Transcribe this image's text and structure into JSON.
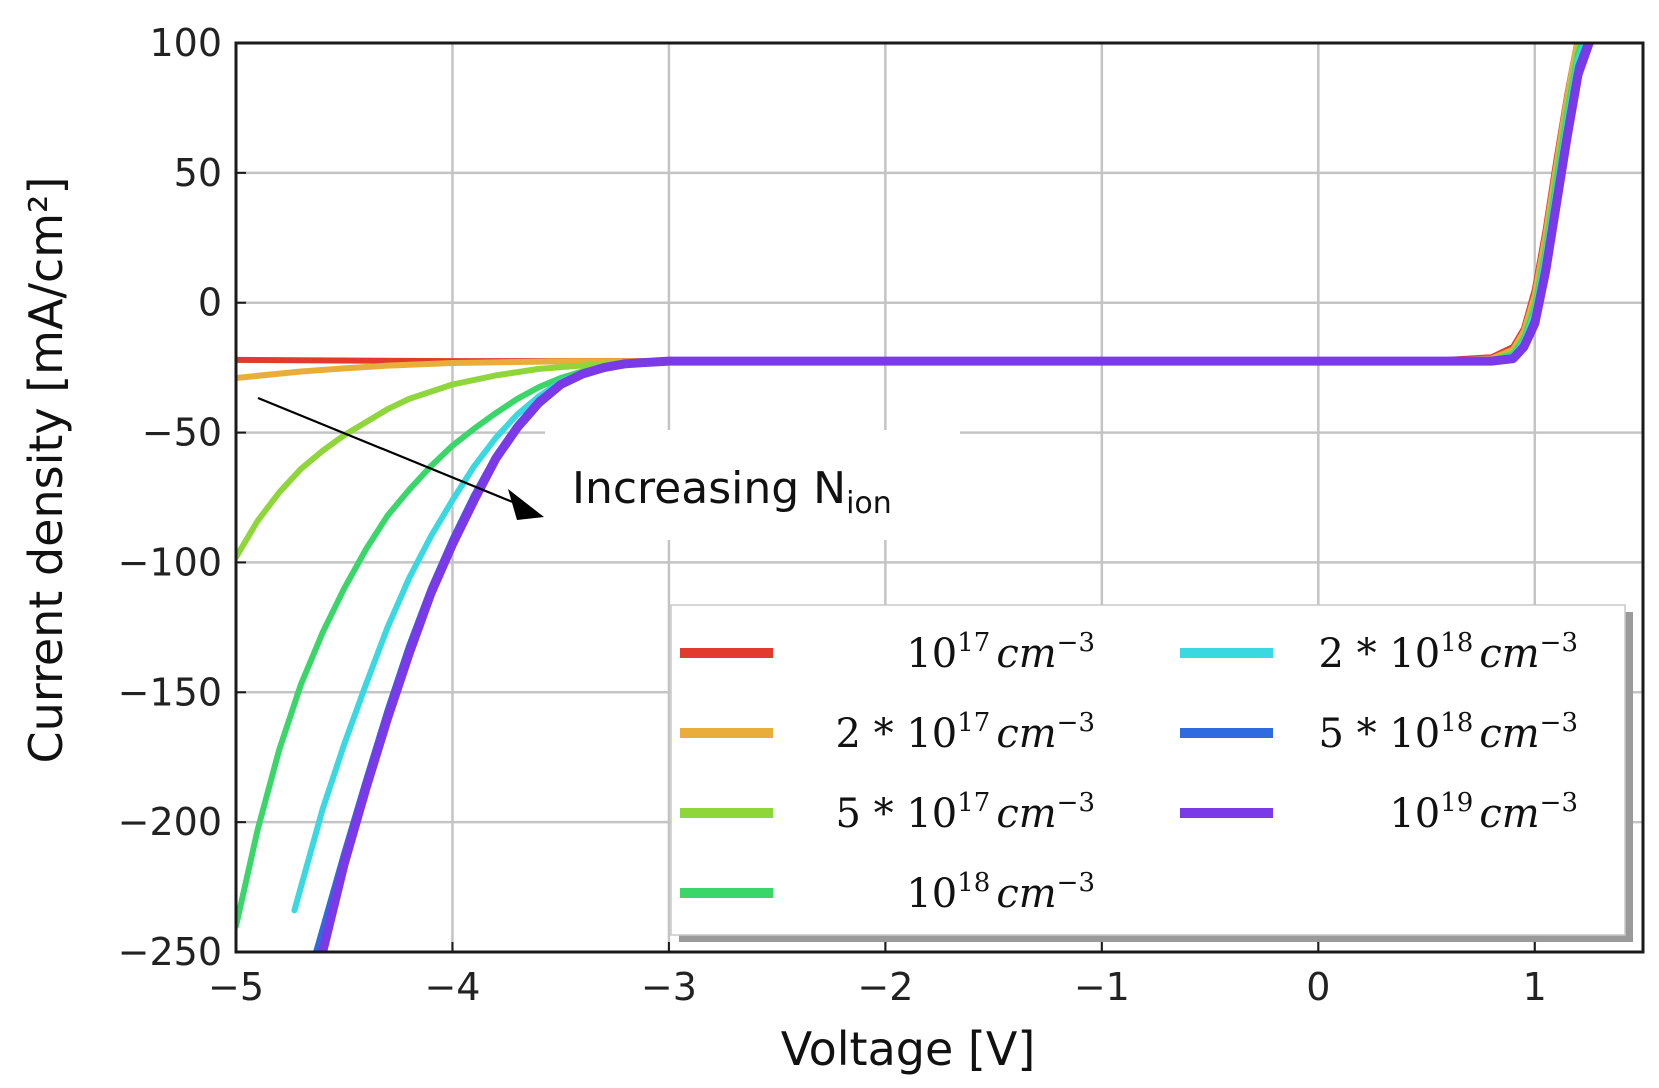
{
  "chart_data": {
    "type": "line",
    "title": "",
    "xlabel": "Voltage [V]",
    "ylabel": "Current density [mA/cm²]",
    "xlim": [
      -5,
      1.5
    ],
    "ylim": [
      -250,
      100
    ],
    "grid": true,
    "x_ticks": [
      -5,
      -4,
      -3,
      -2,
      -1,
      0,
      1
    ],
    "y_ticks": [
      -250,
      -200,
      -150,
      -100,
      -50,
      0,
      50,
      100
    ],
    "legend_position": "bottom-right",
    "annotation": {
      "text": "Increasing N",
      "subscript": "ion"
    },
    "series": [
      {
        "name": "10¹⁷ cm⁻³",
        "coef": "",
        "base": "10",
        "exp": "17",
        "color": "#e23a2e",
        "x": [
          -5.0,
          -4.0,
          -3.0,
          -2.0,
          -1.0,
          0.0,
          0.5,
          0.8,
          0.9,
          0.95,
          1.0,
          1.05,
          1.1,
          1.15,
          1.2
        ],
        "y": [
          -22,
          -22.5,
          -22.5,
          -22.5,
          -22.5,
          -22.5,
          -22.5,
          -21,
          -17,
          -10,
          5,
          28,
          55,
          80,
          102
        ]
      },
      {
        "name": "2 * 10¹⁷ cm⁻³",
        "coef": "2 *",
        "base": "10",
        "exp": "17",
        "color": "#e8ad3a",
        "x": [
          -5.0,
          -4.7,
          -4.5,
          -4.3,
          -4.0,
          -3.5,
          -3.0,
          -2.0,
          -1.0,
          0.0,
          0.5,
          0.8,
          0.9,
          0.95,
          1.0,
          1.05,
          1.1,
          1.15,
          1.2
        ],
        "y": [
          -29,
          -26.5,
          -25.3,
          -24.2,
          -23.2,
          -22.6,
          -22.5,
          -22.5,
          -22.5,
          -22.5,
          -22.5,
          -21.5,
          -18,
          -11,
          3,
          26,
          53,
          79,
          102
        ]
      },
      {
        "name": "5 * 10¹⁷ cm⁻³",
        "coef": "5 *",
        "base": "10",
        "exp": "17",
        "color": "#8fd63a",
        "x": [
          -5.0,
          -4.9,
          -4.8,
          -4.7,
          -4.6,
          -4.5,
          -4.4,
          -4.3,
          -4.2,
          -4.0,
          -3.8,
          -3.6,
          -3.3,
          -3.0,
          -2.0,
          -1.0,
          0.0,
          0.5,
          0.8,
          0.9,
          0.95,
          1.0,
          1.05,
          1.1,
          1.15,
          1.2,
          1.22
        ],
        "y": [
          -98,
          -84,
          -73,
          -64,
          -57,
          -51,
          -46,
          -41,
          -37,
          -31.5,
          -28,
          -25.5,
          -23.5,
          -22.5,
          -22.5,
          -22.5,
          -22.5,
          -22.5,
          -22,
          -19,
          -13,
          0,
          22,
          50,
          76,
          98,
          102
        ]
      },
      {
        "name": "10¹⁸ cm⁻³",
        "coef": "",
        "base": "10",
        "exp": "18",
        "color": "#3ad66a",
        "x": [
          -5.0,
          -4.9,
          -4.8,
          -4.7,
          -4.6,
          -4.5,
          -4.4,
          -4.3,
          -4.2,
          -4.1,
          -4.0,
          -3.9,
          -3.8,
          -3.7,
          -3.6,
          -3.5,
          -3.4,
          -3.2,
          -3.0,
          -2.0,
          -1.0,
          0.0,
          0.5,
          0.8,
          0.9,
          0.95,
          1.0,
          1.05,
          1.1,
          1.15,
          1.2,
          1.23
        ],
        "y": [
          -240,
          -203,
          -172,
          -147,
          -127,
          -110,
          -95,
          -82,
          -72,
          -63,
          -55,
          -48.5,
          -42.5,
          -37,
          -32.5,
          -29,
          -26.5,
          -23.5,
          -22.5,
          -22.5,
          -22.5,
          -22.5,
          -22.5,
          -22.3,
          -20,
          -14,
          -2,
          20,
          47,
          73,
          96,
          102
        ]
      },
      {
        "name": "2 * 10¹⁸ cm⁻³",
        "coef": "2 *",
        "base": "10",
        "exp": "18",
        "color": "#3ad8e0",
        "x": [
          -4.73,
          -4.6,
          -4.5,
          -4.4,
          -4.3,
          -4.2,
          -4.1,
          -4.0,
          -3.9,
          -3.8,
          -3.7,
          -3.6,
          -3.5,
          -3.4,
          -3.3,
          -3.2,
          -3.0,
          -2.0,
          -1.0,
          0.0,
          0.5,
          0.8,
          0.9,
          0.95,
          1.0,
          1.05,
          1.1,
          1.15,
          1.2,
          1.24
        ],
        "y": [
          -234,
          -195,
          -170,
          -147,
          -125,
          -106,
          -90,
          -76,
          -63,
          -52,
          -43,
          -36,
          -30.5,
          -27,
          -25,
          -23.5,
          -22.5,
          -22.5,
          -22.5,
          -22.5,
          -22.5,
          -22.4,
          -20.5,
          -15,
          -4,
          18,
          44,
          70,
          94,
          102
        ]
      },
      {
        "name": "5 * 10¹⁸ cm⁻³",
        "coef": "5 *",
        "base": "10",
        "exp": "18",
        "color": "#2f6ae0",
        "x": [
          -4.63,
          -4.5,
          -4.4,
          -4.3,
          -4.2,
          -4.1,
          -4.0,
          -3.9,
          -3.8,
          -3.7,
          -3.6,
          -3.5,
          -3.4,
          -3.3,
          -3.2,
          -3.0,
          -2.0,
          -1.0,
          0.0,
          0.5,
          0.8,
          0.9,
          0.95,
          1.0,
          1.05,
          1.1,
          1.15,
          1.2,
          1.25
        ],
        "y": [
          -250,
          -212,
          -184,
          -157,
          -132,
          -110,
          -91,
          -74,
          -59,
          -47,
          -37.5,
          -31,
          -27,
          -24.5,
          -23.3,
          -22.5,
          -22.5,
          -22.5,
          -22.5,
          -22.5,
          -22.5,
          -21,
          -16,
          -6,
          15,
          41,
          67,
          91,
          102
        ]
      },
      {
        "name": "10¹⁹ cm⁻³",
        "coef": "",
        "base": "10",
        "exp": "19",
        "color": "#7a3ae8",
        "x": [
          -4.6,
          -4.5,
          -4.4,
          -4.3,
          -4.2,
          -4.1,
          -4.0,
          -3.9,
          -3.8,
          -3.7,
          -3.6,
          -3.5,
          -3.4,
          -3.3,
          -3.2,
          -3.0,
          -2.0,
          -1.0,
          0.0,
          0.5,
          0.8,
          0.9,
          0.95,
          1.0,
          1.05,
          1.1,
          1.15,
          1.2,
          1.26
        ],
        "y": [
          -250,
          -216,
          -187,
          -160,
          -135,
          -112,
          -93,
          -76,
          -60,
          -48,
          -38.5,
          -31.5,
          -27.5,
          -25,
          -23.5,
          -22.5,
          -22.5,
          -22.5,
          -22.5,
          -22.5,
          -22.5,
          -21.5,
          -17,
          -8,
          12,
          38,
          64,
          88,
          102
        ]
      }
    ]
  }
}
